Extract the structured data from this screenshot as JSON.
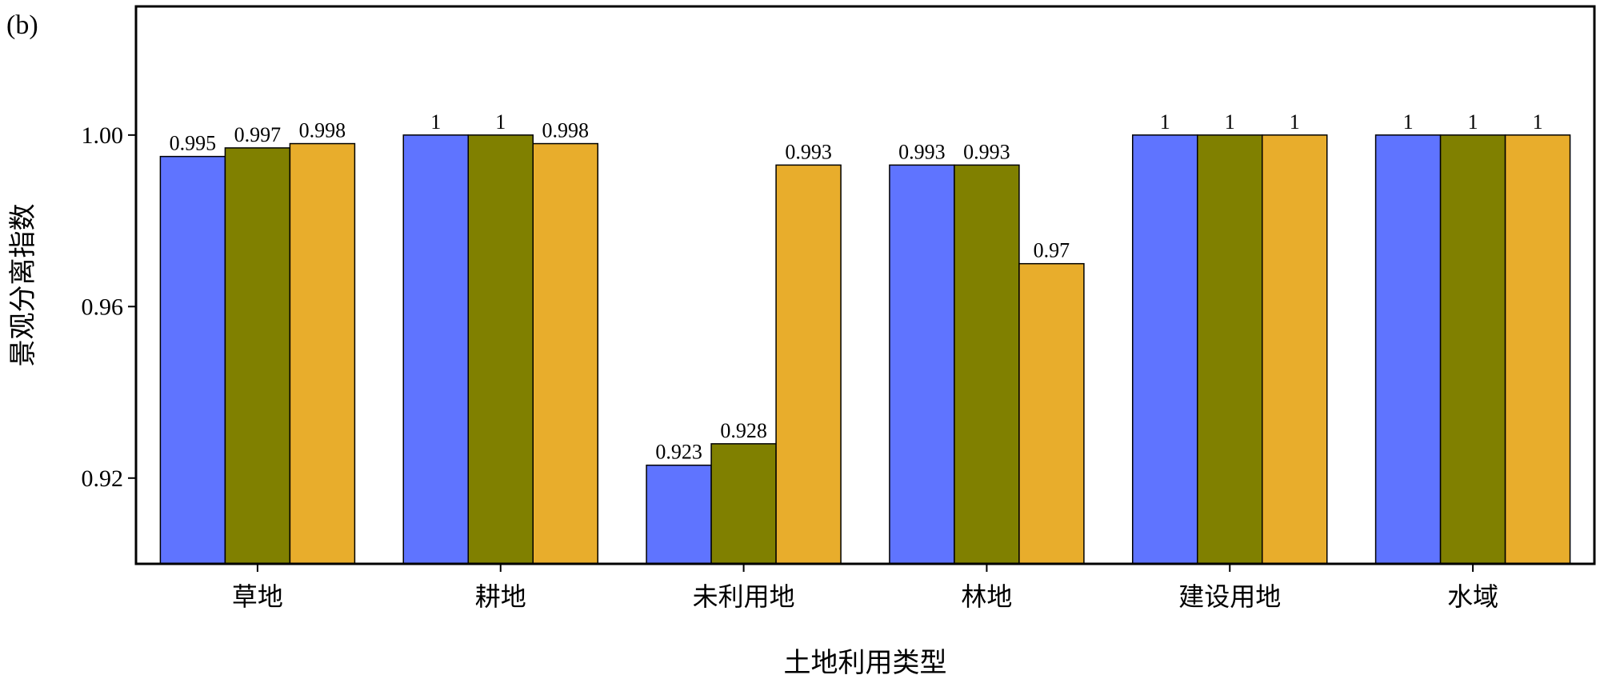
{
  "panel_label": "(b)",
  "colors": {
    "series": [
      "#5f74ff",
      "#808000",
      "#e8ad2c"
    ],
    "axis": "#000000",
    "background": "#ffffff"
  },
  "chart_data": {
    "type": "bar",
    "title": "",
    "xlabel": "土地利用类型",
    "ylabel": "景观分离指数",
    "categories": [
      "草地",
      "耕地",
      "未利用地",
      "林地",
      "建设用地",
      "水域"
    ],
    "series": [
      {
        "values": [
          0.995,
          1,
          0.923,
          0.993,
          1,
          1
        ],
        "labels": [
          "0.995",
          "1",
          "0.923",
          "0.993",
          "1",
          "1"
        ]
      },
      {
        "values": [
          0.997,
          1,
          0.928,
          0.993,
          1,
          1
        ],
        "labels": [
          "0.997",
          "1",
          "0.928",
          "0.993",
          "1",
          "1"
        ]
      },
      {
        "values": [
          0.998,
          0.998,
          0.993,
          0.97,
          1,
          1
        ],
        "labels": [
          "0.998",
          "0.998",
          "0.993",
          "0.97",
          "1",
          "1"
        ]
      }
    ],
    "ylim": [
      0.9,
      1.03
    ],
    "yticks": [
      0.92,
      0.96,
      1.0
    ],
    "ytick_labels": [
      "0.92",
      "0.96",
      "1.00"
    ],
    "grid": false,
    "legend": "none"
  }
}
